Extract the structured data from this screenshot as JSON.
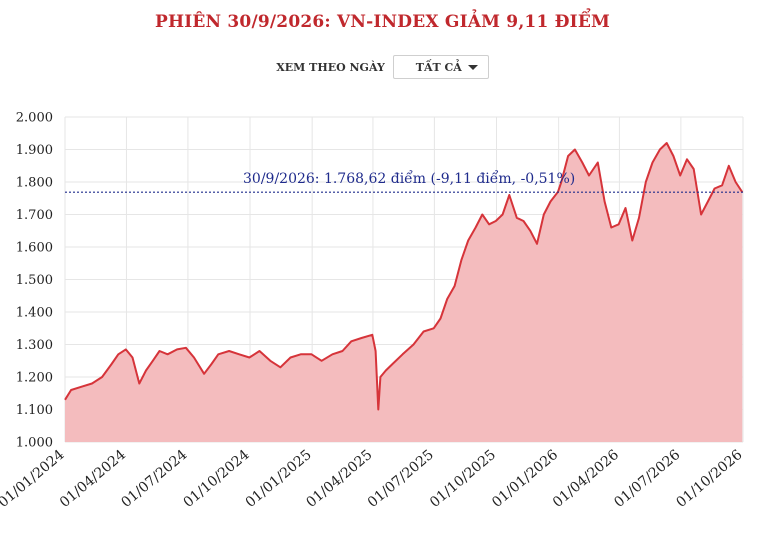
{
  "header": {
    "title": "PHIÊN 30/9/2026: VN-INDEX GIẢM 9,11 ĐIỂM"
  },
  "filter": {
    "label": "XEM THEO NGÀY",
    "selected": "TẤT CẢ"
  },
  "colors": {
    "line": "#d6343a",
    "area": "#f4bcbe",
    "reference": "#1f2b8c",
    "grid": "#e6e6e6",
    "title": "#c0282d"
  },
  "chart_data": {
    "type": "area",
    "title": "PHIÊN 30/9/2026: VN-INDEX GIẢM 9,11 ĐIỂM",
    "xlabel": "",
    "ylabel": "",
    "ylim": [
      1000,
      2000
    ],
    "y_ticks": [
      "1.000",
      "1.100",
      "1.200",
      "1.300",
      "1.400",
      "1.500",
      "1.600",
      "1.700",
      "1.800",
      "1.900",
      "2.000"
    ],
    "x_ticks": [
      "01/01/2024",
      "01/04/2024",
      "01/07/2024",
      "01/10/2024",
      "01/01/2025",
      "01/04/2025",
      "01/07/2025",
      "01/10/2025",
      "01/01/2026",
      "01/04/2026",
      "01/07/2026",
      "01/10/2026"
    ],
    "reference_line": {
      "value": 1768.62,
      "label": "30/9/2026: 1.768,62 điểm (-9,11 điểm, -0,51%)"
    },
    "grid": true,
    "series": [
      {
        "x": [
          "2024-01-01",
          "2024-01-10",
          "2024-01-25",
          "2024-02-10",
          "2024-02-25",
          "2024-03-10",
          "2024-03-20",
          "2024-03-31",
          "2024-04-10",
          "2024-04-20",
          "2024-04-30",
          "2024-05-10",
          "2024-05-20",
          "2024-06-01",
          "2024-06-15",
          "2024-06-28",
          "2024-07-10",
          "2024-07-25",
          "2024-08-05",
          "2024-08-15",
          "2024-08-31",
          "2024-09-15",
          "2024-09-30",
          "2024-10-15",
          "2024-10-31",
          "2024-11-15",
          "2024-11-30",
          "2024-12-15",
          "2024-12-31",
          "2025-01-15",
          "2025-01-31",
          "2025-02-15",
          "2025-02-28",
          "2025-03-15",
          "2025-03-31",
          "2025-04-05",
          "2025-04-09",
          "2025-04-12",
          "2025-04-20",
          "2025-04-30",
          "2025-05-15",
          "2025-05-31",
          "2025-06-15",
          "2025-06-30",
          "2025-07-10",
          "2025-07-20",
          "2025-07-31",
          "2025-08-10",
          "2025-08-20",
          "2025-08-31",
          "2025-09-10",
          "2025-09-20",
          "2025-09-30",
          "2025-10-10",
          "2025-10-20",
          "2025-10-31",
          "2025-11-10",
          "2025-11-20",
          "2025-11-30",
          "2025-12-10",
          "2025-12-20",
          "2025-12-31",
          "2026-01-05",
          "2026-01-15",
          "2026-01-25",
          "2026-02-05",
          "2026-02-15",
          "2026-02-28",
          "2026-03-10",
          "2026-03-20",
          "2026-03-31",
          "2026-04-10",
          "2026-04-20",
          "2026-04-30",
          "2026-05-10",
          "2026-05-20",
          "2026-05-31",
          "2026-06-10",
          "2026-06-20",
          "2026-06-30",
          "2026-07-10",
          "2026-07-20",
          "2026-07-31",
          "2026-08-10",
          "2026-08-20",
          "2026-08-31",
          "2026-09-10",
          "2026-09-20",
          "2026-09-30"
        ],
        "values": [
          1130,
          1160,
          1170,
          1180,
          1200,
          1240,
          1270,
          1285,
          1260,
          1180,
          1220,
          1250,
          1280,
          1270,
          1285,
          1290,
          1260,
          1210,
          1240,
          1270,
          1280,
          1270,
          1260,
          1280,
          1250,
          1230,
          1260,
          1270,
          1270,
          1250,
          1270,
          1280,
          1310,
          1320,
          1330,
          1280,
          1100,
          1200,
          1220,
          1240,
          1270,
          1300,
          1340,
          1350,
          1380,
          1440,
          1480,
          1560,
          1620,
          1660,
          1700,
          1670,
          1680,
          1700,
          1760,
          1690,
          1680,
          1650,
          1610,
          1700,
          1740,
          1770,
          1800,
          1880,
          1900,
          1860,
          1820,
          1860,
          1740,
          1660,
          1670,
          1720,
          1620,
          1690,
          1800,
          1860,
          1900,
          1920,
          1880,
          1820,
          1870,
          1840,
          1700,
          1740,
          1780,
          1790,
          1850,
          1800,
          1768.62
        ]
      }
    ]
  }
}
